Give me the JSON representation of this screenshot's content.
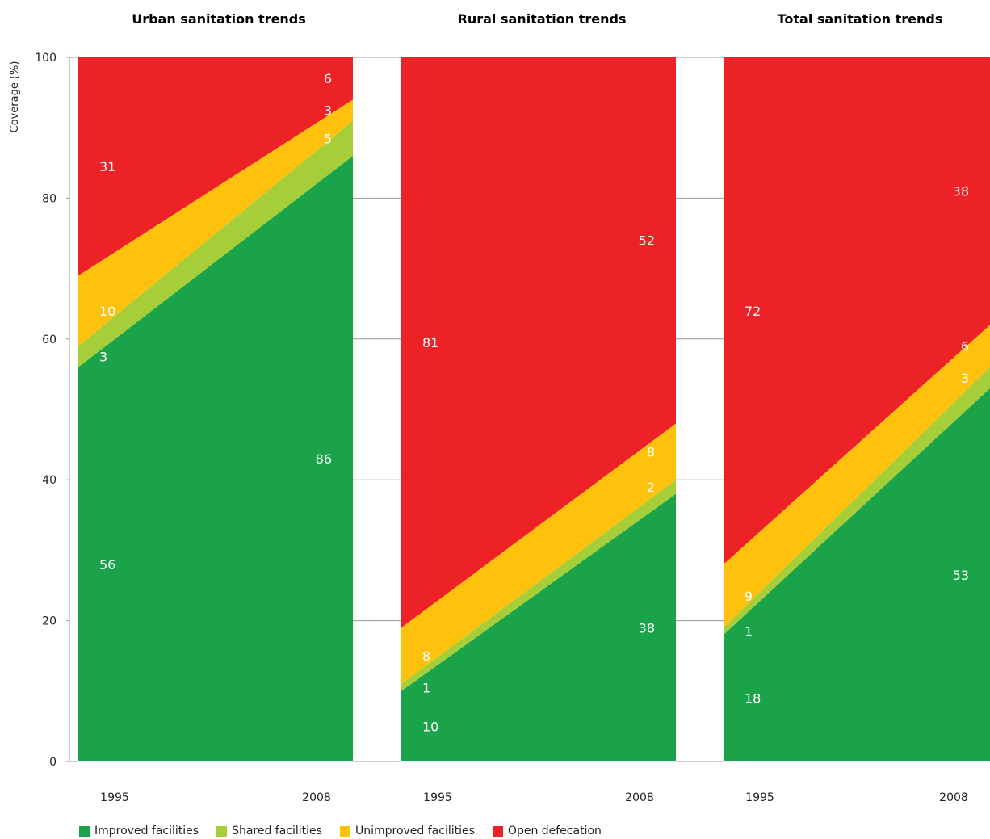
{
  "chart_data": [
    {
      "type": "area",
      "title": "Urban sanitation trends",
      "ylabel": "Coverage (%)",
      "ylim": [
        0,
        100
      ],
      "yticks": [
        0,
        20,
        40,
        60,
        80,
        100
      ],
      "x": [
        "1995",
        "2008"
      ],
      "series": [
        {
          "name": "Improved facilities",
          "values": [
            56,
            86
          ]
        },
        {
          "name": "Shared facilities",
          "values": [
            3,
            5
          ]
        },
        {
          "name": "Unimproved facilities",
          "values": [
            10,
            3
          ]
        },
        {
          "name": "Open defecation",
          "values": [
            31,
            6
          ]
        }
      ]
    },
    {
      "type": "area",
      "title": "Rural sanitation trends",
      "ylim": [
        0,
        100
      ],
      "x": [
        "1995",
        "2008"
      ],
      "series": [
        {
          "name": "Improved facilities",
          "values": [
            10,
            38
          ]
        },
        {
          "name": "Shared facilities",
          "values": [
            1,
            2
          ]
        },
        {
          "name": "Unimproved facilities",
          "values": [
            8,
            8
          ]
        },
        {
          "name": "Open defecation",
          "values": [
            81,
            52
          ]
        }
      ]
    },
    {
      "type": "area",
      "title": "Total sanitation trends",
      "ylim": [
        0,
        100
      ],
      "x": [
        "1995",
        "2008"
      ],
      "series": [
        {
          "name": "Improved facilities",
          "values": [
            18,
            53
          ]
        },
        {
          "name": "Shared facilities",
          "values": [
            1,
            3
          ]
        },
        {
          "name": "Unimproved facilities",
          "values": [
            9,
            6
          ]
        },
        {
          "name": "Open defecation",
          "values": [
            72,
            38
          ]
        }
      ]
    }
  ],
  "legend": {
    "placement": "bottom-left",
    "items": [
      {
        "label": "Improved facilities",
        "color": "#1ba34a"
      },
      {
        "label": "Shared facilities",
        "color": "#a6ce39"
      },
      {
        "label": "Unimproved facilities",
        "color": "#fec10d"
      },
      {
        "label": "Open defecation",
        "color": "#ec2227"
      }
    ]
  },
  "grid": true
}
